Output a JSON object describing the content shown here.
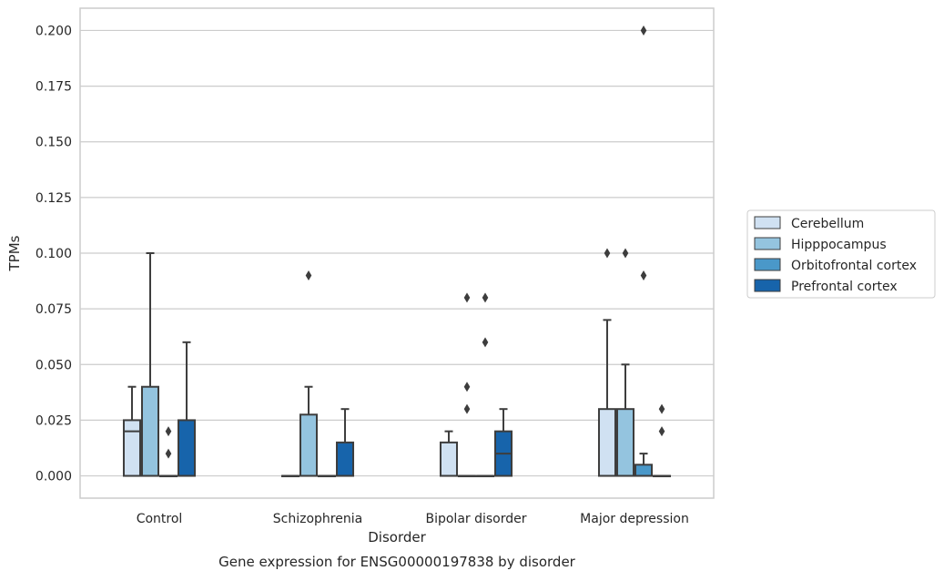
{
  "chart_data": {
    "type": "box",
    "caption": "Gene expression for ENSG00000197838 by disorder",
    "xlabel": "Disorder",
    "ylabel": "TPMs",
    "ylim": [
      -0.01,
      0.21
    ],
    "yticks": [
      0.0,
      0.025,
      0.05,
      0.075,
      0.1,
      0.125,
      0.15,
      0.175,
      0.2
    ],
    "ytick_labels": [
      "0.000",
      "0.025",
      "0.050",
      "0.075",
      "0.100",
      "0.125",
      "0.150",
      "0.175",
      "0.200"
    ],
    "grid": "horizontal",
    "legend_position": "right",
    "categories": [
      "Control",
      "Schizophrenia",
      "Bipolar disorder",
      "Major depression"
    ],
    "series": [
      {
        "name": "Cerebellum",
        "color": "#d0e1f2",
        "boxes": [
          {
            "q1": 0.0,
            "median": 0.02,
            "q3": 0.025,
            "whisker_low": 0.0,
            "whisker_high": 0.04,
            "outliers": []
          },
          {
            "q1": 0.0,
            "median": 0.0,
            "q3": 0.0,
            "whisker_low": 0.0,
            "whisker_high": 0.0,
            "outliers": []
          },
          {
            "q1": 0.0,
            "median": 0.0,
            "q3": 0.015,
            "whisker_low": 0.0,
            "whisker_high": 0.02,
            "outliers": []
          },
          {
            "q1": 0.0,
            "median": 0.0,
            "q3": 0.03,
            "whisker_low": 0.0,
            "whisker_high": 0.07,
            "outliers": [
              0.1
            ]
          }
        ]
      },
      {
        "name": "Hipppocampus",
        "color": "#94c4df",
        "boxes": [
          {
            "q1": 0.0,
            "median": 0.0,
            "q3": 0.04,
            "whisker_low": 0.0,
            "whisker_high": 0.1,
            "outliers": []
          },
          {
            "q1": 0.0,
            "median": 0.0,
            "q3": 0.0275,
            "whisker_low": 0.0,
            "whisker_high": 0.04,
            "outliers": [
              0.09
            ]
          },
          {
            "q1": 0.0,
            "median": 0.0,
            "q3": 0.0,
            "whisker_low": 0.0,
            "whisker_high": 0.0,
            "outliers": [
              0.03,
              0.04,
              0.08
            ]
          },
          {
            "q1": 0.0,
            "median": 0.0,
            "q3": 0.03,
            "whisker_low": 0.0,
            "whisker_high": 0.05,
            "outliers": [
              0.1
            ]
          }
        ]
      },
      {
        "name": "Orbitofrontal cortex",
        "color": "#4a98c9",
        "boxes": [
          {
            "q1": 0.0,
            "median": 0.0,
            "q3": 0.0,
            "whisker_low": 0.0,
            "whisker_high": 0.0,
            "outliers": [
              0.01,
              0.02
            ]
          },
          {
            "q1": 0.0,
            "median": 0.0,
            "q3": 0.0,
            "whisker_low": 0.0,
            "whisker_high": 0.0,
            "outliers": []
          },
          {
            "q1": 0.0,
            "median": 0.0,
            "q3": 0.0,
            "whisker_low": 0.0,
            "whisker_high": 0.0,
            "outliers": [
              0.06,
              0.08
            ]
          },
          {
            "q1": 0.0,
            "median": 0.0,
            "q3": 0.005,
            "whisker_low": 0.0,
            "whisker_high": 0.01,
            "outliers": [
              0.09,
              0.2
            ]
          }
        ]
      },
      {
        "name": "Prefrontal cortex",
        "color": "#1764ab",
        "boxes": [
          {
            "q1": 0.0,
            "median": 0.0,
            "q3": 0.025,
            "whisker_low": 0.0,
            "whisker_high": 0.06,
            "outliers": []
          },
          {
            "q1": 0.0,
            "median": 0.0,
            "q3": 0.015,
            "whisker_low": 0.0,
            "whisker_high": 0.03,
            "outliers": []
          },
          {
            "q1": 0.0,
            "median": 0.01,
            "q3": 0.02,
            "whisker_low": 0.0,
            "whisker_high": 0.03,
            "outliers": []
          },
          {
            "q1": 0.0,
            "median": 0.0,
            "q3": 0.0,
            "whisker_low": 0.0,
            "whisker_high": 0.0,
            "outliers": [
              0.02,
              0.03
            ]
          }
        ]
      }
    ]
  }
}
